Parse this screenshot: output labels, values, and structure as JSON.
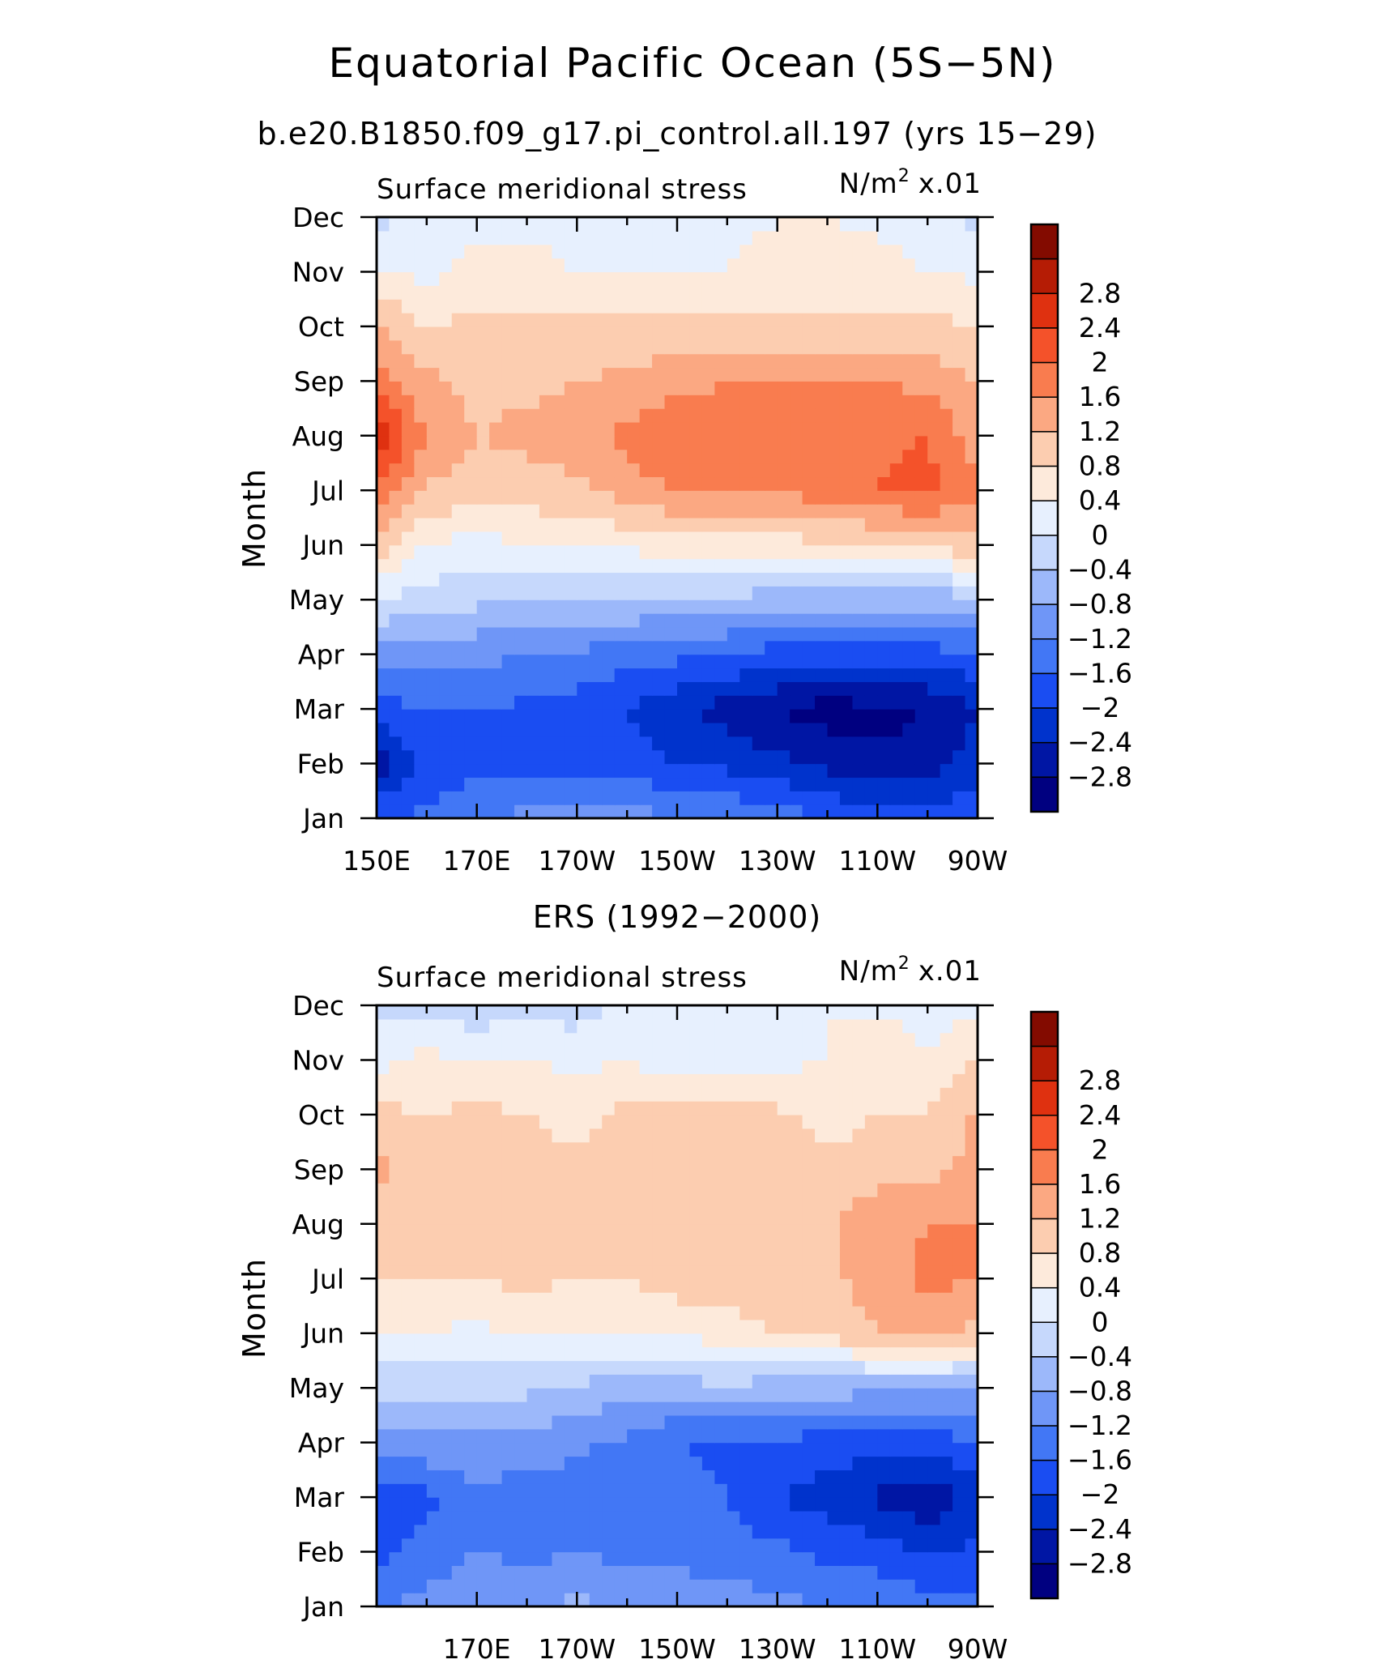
{
  "figure": {
    "title": "Equatorial Pacific Ocean (5S−5N)",
    "panels": [
      {
        "title": "b.e20.B1850.f09_g17.pi_control.all.197 (yrs 15−29)",
        "variable": "Surface meridional stress",
        "units_base": "N/m",
        "units_exp": "2",
        "units_scale": "x.01",
        "ylabel": "Month"
      },
      {
        "title": "ERS (1992−2000)",
        "variable": "Surface meridional stress",
        "units_base": "N/m",
        "units_exp": "2",
        "units_scale": "x.01",
        "ylabel": "Month"
      }
    ]
  },
  "chart_data": [
    {
      "type": "heatmap",
      "title": "b.e20.B1850.f09_g17.pi_control.all.197 (yrs 15−29)",
      "subtitle": "Surface meridional stress",
      "units": "N/m² x.01",
      "xlabel": "",
      "ylabel": "Month",
      "x_ticks": [
        150,
        170,
        190,
        210,
        230,
        250,
        270
      ],
      "x_tick_labels": [
        "150E",
        "170E",
        "170W",
        "150W",
        "130W",
        "110W",
        "90W"
      ],
      "y_tick_labels": [
        "Jan",
        "Feb",
        "Mar",
        "Apr",
        "May",
        "Jun",
        "Jul",
        "Aug",
        "Sep",
        "Oct",
        "Nov",
        "Dec"
      ],
      "xlim": [
        150,
        270
      ],
      "ylim": [
        1,
        12
      ],
      "x": [
        150,
        160,
        170,
        180,
        190,
        200,
        210,
        220,
        230,
        240,
        250,
        260,
        270
      ],
      "y": [
        1,
        2,
        3,
        4,
        5,
        6,
        7,
        8,
        9,
        10,
        11,
        12
      ],
      "z": [
        [
          -1.7,
          -1.5,
          -1.2,
          -1.1,
          -1.1,
          -1.1,
          -1.1,
          -1.2,
          -1.4,
          -1.6,
          -1.8,
          -1.9,
          -1.7
        ],
        [
          -2.6,
          -1.9,
          -1.7,
          -1.7,
          -1.7,
          -1.8,
          -2.0,
          -2.1,
          -2.3,
          -2.5,
          -2.7,
          -2.7,
          -2.1
        ],
        [
          -1.8,
          -1.6,
          -1.6,
          -1.7,
          -1.8,
          -2.0,
          -2.3,
          -2.6,
          -2.8,
          -3.0,
          -2.9,
          -2.8,
          -2.4
        ],
        [
          -1.0,
          -1.0,
          -1.1,
          -1.2,
          -1.3,
          -1.4,
          -1.5,
          -1.6,
          -1.8,
          -1.8,
          -1.8,
          -1.8,
          -1.6
        ],
        [
          0.0,
          -0.2,
          -0.3,
          -0.3,
          -0.4,
          -0.4,
          -0.5,
          -0.5,
          -0.6,
          -0.6,
          -0.6,
          -0.6,
          -0.6
        ],
        [
          1.0,
          0.4,
          0.2,
          0.4,
          0.5,
          0.5,
          0.6,
          0.6,
          0.6,
          0.7,
          0.8,
          0.9,
          1.1
        ],
        [
          2.0,
          1.2,
          0.9,
          1.0,
          1.1,
          1.4,
          1.6,
          1.7,
          1.7,
          1.8,
          2.0,
          2.1,
          1.7
        ],
        [
          2.8,
          1.5,
          1.2,
          1.3,
          1.5,
          1.7,
          2.0,
          1.7,
          1.6,
          1.7,
          1.9,
          2.0,
          1.4
        ],
        [
          1.9,
          1.3,
          1.1,
          1.1,
          1.2,
          1.3,
          1.5,
          1.6,
          1.6,
          1.6,
          1.6,
          1.5,
          1.2
        ],
        [
          1.2,
          0.8,
          0.9,
          0.9,
          0.9,
          0.9,
          0.9,
          0.9,
          0.9,
          0.9,
          0.9,
          0.9,
          0.8
        ],
        [
          0.5,
          0.3,
          0.5,
          0.5,
          0.4,
          0.4,
          0.4,
          0.4,
          0.5,
          0.6,
          0.6,
          0.4,
          0.3
        ],
        [
          -0.2,
          0.2,
          0.3,
          0.3,
          0.3,
          0.3,
          0.3,
          0.3,
          0.4,
          0.4,
          0.3,
          0.2,
          -0.1
        ]
      ],
      "levels": [
        -2.8,
        -2.4,
        -2,
        -1.6,
        -1.2,
        -0.8,
        -0.4,
        0,
        0.4,
        0.8,
        1.2,
        1.6,
        2,
        2.4,
        2.8
      ],
      "level_labels": [
        "−2.8",
        "−2.4",
        "−2",
        "−1.6",
        "−1.2",
        "−0.8",
        "−0.4",
        "0",
        "0.4",
        "0.8",
        "1.2",
        "1.6",
        "2",
        "2.4",
        "2.8"
      ],
      "colors": [
        "#000080",
        "#0016a4",
        "#0033cc",
        "#1a4df2",
        "#4277f5",
        "#6f96f7",
        "#9cb8fa",
        "#c6d8fc",
        "#e7f0fe",
        "#fdeadb",
        "#fccdb0",
        "#fba882",
        "#f97c4f",
        "#f4522a",
        "#df3110",
        "#b51c05",
        "#830b00"
      ],
      "grid": false,
      "legend": "colorbar-right"
    },
    {
      "type": "heatmap",
      "title": "ERS (1992−2000)",
      "subtitle": "Surface meridional stress",
      "units": "N/m² x.01",
      "xlabel": "",
      "ylabel": "Month",
      "x_ticks": [
        170,
        190,
        210,
        230,
        250,
        270
      ],
      "x_tick_labels": [
        "170E",
        "170W",
        "150W",
        "130W",
        "110W",
        "90W"
      ],
      "y_tick_labels": [
        "Jan",
        "Feb",
        "Mar",
        "Apr",
        "May",
        "Jun",
        "Jul",
        "Aug",
        "Sep",
        "Oct",
        "Nov",
        "Dec"
      ],
      "xlim": [
        150,
        270
      ],
      "ylim": [
        1,
        12
      ],
      "x": [
        150,
        160,
        170,
        180,
        190,
        200,
        210,
        220,
        230,
        240,
        250,
        260,
        270
      ],
      "y": [
        1,
        2,
        3,
        4,
        5,
        6,
        7,
        8,
        9,
        10,
        11,
        12
      ],
      "z": [
        [
          -1.2,
          -1.1,
          -0.9,
          -0.9,
          -0.7,
          -0.9,
          -1.0,
          -1.0,
          -1.1,
          -1.2,
          -1.3,
          -1.4,
          -1.5
        ],
        [
          -1.8,
          -1.4,
          -1.2,
          -1.3,
          -1.2,
          -1.3,
          -1.3,
          -1.4,
          -1.5,
          -1.7,
          -1.8,
          -2.0,
          -1.9
        ],
        [
          -2.0,
          -1.7,
          -1.3,
          -1.4,
          -1.4,
          -1.4,
          -1.5,
          -1.6,
          -2.0,
          -2.2,
          -2.5,
          -2.7,
          -2.3
        ],
        [
          -0.9,
          -0.9,
          -0.9,
          -1.0,
          -1.1,
          -1.3,
          -1.6,
          -1.7,
          -1.7,
          -1.8,
          -1.8,
          -1.8,
          -1.6
        ],
        [
          -0.3,
          -0.3,
          -0.2,
          -0.3,
          -0.5,
          -0.6,
          -0.6,
          -0.5,
          -0.6,
          -0.6,
          -0.7,
          -0.7,
          -0.8
        ],
        [
          0.5,
          0.4,
          0.3,
          0.5,
          0.5,
          0.5,
          0.5,
          0.6,
          0.8,
          0.9,
          1.2,
          1.4,
          1.1
        ],
        [
          0.8,
          0.8,
          0.8,
          0.9,
          0.8,
          0.8,
          1.0,
          1.0,
          1.1,
          1.1,
          1.4,
          1.7,
          1.6
        ],
        [
          0.9,
          0.9,
          0.8,
          1.0,
          0.9,
          1.0,
          1.1,
          1.1,
          1.1,
          1.1,
          1.5,
          1.6,
          1.6
        ],
        [
          1.3,
          0.9,
          0.8,
          0.9,
          0.9,
          1.0,
          1.0,
          1.1,
          1.0,
          1.0,
          1.0,
          1.1,
          1.3
        ],
        [
          0.9,
          0.8,
          0.9,
          0.8,
          0.7,
          0.9,
          0.9,
          0.9,
          0.9,
          0.6,
          0.8,
          0.8,
          1.3
        ],
        [
          0.3,
          0.5,
          0.4,
          0.4,
          0.3,
          0.4,
          0.2,
          0.2,
          0.3,
          0.4,
          0.8,
          0.4,
          0.9
        ],
        [
          -0.2,
          -0.1,
          -0.3,
          -0.1,
          -0.2,
          0.1,
          0.2,
          0.2,
          0.3,
          0.4,
          0.3,
          0.3,
          0.2
        ]
      ],
      "levels": [
        -2.8,
        -2.4,
        -2,
        -1.6,
        -1.2,
        -0.8,
        -0.4,
        0,
        0.4,
        0.8,
        1.2,
        1.6,
        2,
        2.4,
        2.8
      ],
      "level_labels": [
        "−2.8",
        "−2.4",
        "−2",
        "−1.6",
        "−1.2",
        "−0.8",
        "−0.4",
        "0",
        "0.4",
        "0.8",
        "1.2",
        "1.6",
        "2",
        "2.4",
        "2.8"
      ],
      "colors": [
        "#000080",
        "#0016a4",
        "#0033cc",
        "#1a4df2",
        "#4277f5",
        "#6f96f7",
        "#9cb8fa",
        "#c6d8fc",
        "#e7f0fe",
        "#fdeadb",
        "#fccdb0",
        "#fba882",
        "#f97c4f",
        "#f4522a",
        "#df3110",
        "#b51c05",
        "#830b00"
      ],
      "grid": false,
      "legend": "colorbar-right"
    }
  ]
}
